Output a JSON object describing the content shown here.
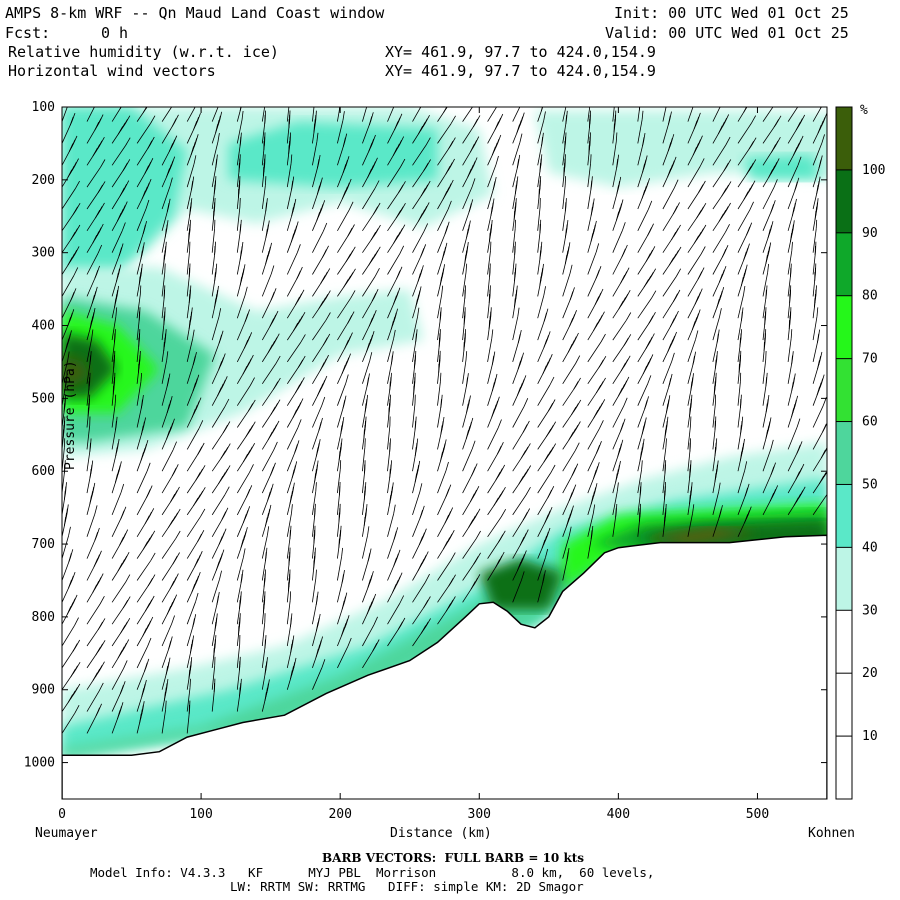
{
  "header": {
    "title": "AMPS 8-km WRF -- Qn Maud Land Coast window",
    "init": "Init: 00 UTC Wed 01 Oct 25",
    "fcst_label": "Fcst:",
    "fcst_value": "0 h",
    "valid": "Valid: 00 UTC Wed 01 Oct 25",
    "field1": "Relative humidity (w.r.t. ice)",
    "field2": "Horizontal wind vectors",
    "xy1": "XY= 461.9, 97.7 to 424.0,154.9",
    "xy2": "XY= 461.9, 97.7 to 424.0,154.9"
  },
  "footer": {
    "barb_note": "BARB VECTORS:  FULL BARB = 10 kts",
    "model_info": "Model Info: V4.3.3   KF      MYJ PBL  Morrison          8.0 km,  60 levels,",
    "model_info2": "LW: RRTM SW: RRTMG   DIFF: simple KM: 2D Smagor"
  },
  "colors": {
    "rh_30_40": "#bdf5e6",
    "rh_40_50": "#5ae8c8",
    "rh_50_60": "#4ed69c",
    "rh_60_70": "#33e133",
    "rh_70_80": "#25f71a",
    "rh_80_90": "#0fa82a",
    "rh_90_100": "#0a7016",
    "rh_100_plus": "#3b5e0a",
    "terrain_supersat": "#5e5e12",
    "barb": "#000000"
  },
  "chart_data": {
    "type": "heatmap",
    "title": "Relative humidity (w.r.t. ice) cross section with horizontal wind vectors",
    "xlabel": "Distance (km)",
    "ylabel": "Pressure (hPa)",
    "xlim": [
      0,
      550
    ],
    "ylim": [
      1050,
      100
    ],
    "x_ticks": [
      0,
      100,
      200,
      300,
      400,
      500
    ],
    "y_ticks": [
      100,
      200,
      300,
      400,
      500,
      600,
      700,
      800,
      900,
      1000
    ],
    "x_start_label": "Neumayer",
    "x_end_label": "Kohnen",
    "colorbar": {
      "unit": "%",
      "ticks": [
        10,
        20,
        30,
        40,
        50,
        60,
        70,
        80,
        90,
        100
      ],
      "levels": [
        {
          "min": 0,
          "max": 30,
          "color": "#ffffff"
        },
        {
          "min": 30,
          "max": 40,
          "color": "#bdf5e6"
        },
        {
          "min": 40,
          "max": 50,
          "color": "#5ae8c8"
        },
        {
          "min": 50,
          "max": 60,
          "color": "#4ed69c"
        },
        {
          "min": 60,
          "max": 70,
          "color": "#33e133"
        },
        {
          "min": 70,
          "max": 80,
          "color": "#25f71a"
        },
        {
          "min": 80,
          "max": 90,
          "color": "#0fa82a"
        },
        {
          "min": 90,
          "max": 100,
          "color": "#0a7016"
        },
        {
          "min": 100,
          "max": 110,
          "color": "#3b5e0a"
        }
      ]
    },
    "terrain_surface_pressure": [
      [
        0,
        990
      ],
      [
        20,
        990
      ],
      [
        50,
        990
      ],
      [
        70,
        985
      ],
      [
        90,
        965
      ],
      [
        110,
        955
      ],
      [
        130,
        945
      ],
      [
        160,
        935
      ],
      [
        190,
        905
      ],
      [
        220,
        880
      ],
      [
        250,
        860
      ],
      [
        270,
        835
      ],
      [
        290,
        800
      ],
      [
        300,
        782
      ],
      [
        310,
        780
      ],
      [
        320,
        792
      ],
      [
        330,
        810
      ],
      [
        340,
        815
      ],
      [
        350,
        800
      ],
      [
        360,
        765
      ],
      [
        375,
        740
      ],
      [
        390,
        712
      ],
      [
        400,
        705
      ],
      [
        430,
        698
      ],
      [
        480,
        698
      ],
      [
        520,
        690
      ],
      [
        550,
        688
      ]
    ],
    "wind_columns_x_km": [
      0,
      18,
      36,
      54,
      72,
      90,
      108,
      126,
      144,
      162,
      180,
      198,
      216,
      234,
      252,
      270,
      288,
      306,
      324,
      342,
      360,
      378,
      396,
      414,
      432,
      450,
      468,
      486,
      504,
      522,
      540
    ],
    "wind_levels_hPa": [
      120,
      150,
      180,
      210,
      240,
      270,
      300,
      330,
      360,
      390,
      420,
      450,
      480,
      510,
      540,
      570,
      600,
      630,
      660,
      690,
      720,
      750,
      780,
      810,
      840,
      870,
      900,
      930,
      960,
      990
    ]
  }
}
